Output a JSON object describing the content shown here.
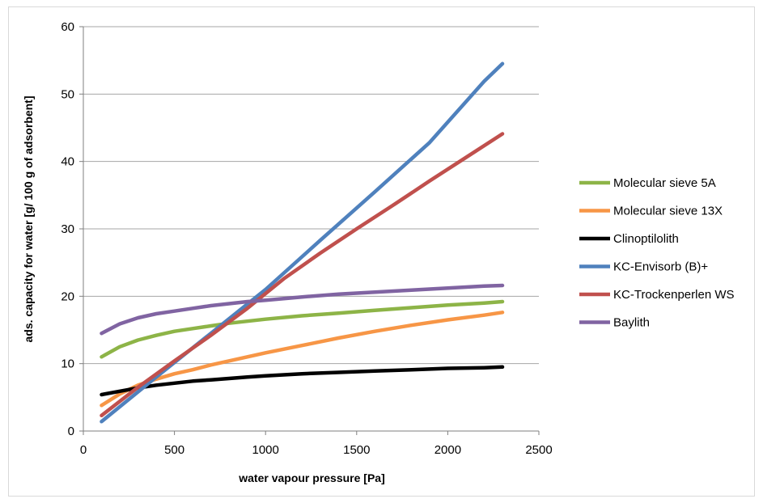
{
  "chart_data": {
    "type": "line",
    "title": "",
    "xlabel": "water vapour pressure [Pa]",
    "ylabel": "ads. capacity for water  [g/ 100 g of adsorbent]",
    "xlim": [
      0,
      2500
    ],
    "ylim": [
      0,
      60
    ],
    "xticks": [
      0,
      500,
      1000,
      1500,
      2000,
      2500
    ],
    "yticks": [
      0,
      10,
      20,
      30,
      40,
      50,
      60
    ],
    "grid": "horizontal",
    "legend_position": "right",
    "series": [
      {
        "name": "Molecular sieve 5A",
        "color": "#8db447",
        "x": [
          100,
          200,
          300,
          400,
          500,
          600,
          700,
          800,
          900,
          1000,
          1200,
          1400,
          1600,
          1800,
          2000,
          2200,
          2300
        ],
        "y": [
          11.0,
          12.5,
          13.5,
          14.2,
          14.8,
          15.2,
          15.6,
          16.0,
          16.3,
          16.6,
          17.1,
          17.5,
          17.9,
          18.3,
          18.7,
          19.0,
          19.2
        ]
      },
      {
        "name": "Molecular sieve 13X",
        "color": "#f79646",
        "x": [
          100,
          200,
          300,
          400,
          500,
          600,
          700,
          800,
          900,
          1000,
          1200,
          1400,
          1600,
          1800,
          2000,
          2200,
          2300
        ],
        "y": [
          3.8,
          5.5,
          6.8,
          7.7,
          8.5,
          9.1,
          9.8,
          10.4,
          11.0,
          11.6,
          12.7,
          13.8,
          14.8,
          15.7,
          16.5,
          17.2,
          17.6
        ]
      },
      {
        "name": "Clinoptilolith",
        "color": "#000000",
        "x": [
          100,
          200,
          300,
          400,
          500,
          600,
          700,
          800,
          900,
          1000,
          1200,
          1400,
          1600,
          1800,
          2000,
          2200,
          2300
        ],
        "y": [
          5.4,
          5.9,
          6.4,
          6.8,
          7.1,
          7.4,
          7.6,
          7.8,
          8.0,
          8.2,
          8.5,
          8.7,
          8.9,
          9.1,
          9.3,
          9.4,
          9.5
        ]
      },
      {
        "name": "KC-Envisorb (B)+",
        "color": "#4f81bd",
        "x": [
          100,
          400,
          700,
          1000,
          1300,
          1600,
          1900,
          2200,
          2300
        ],
        "y": [
          1.4,
          8.0,
          14.5,
          21.0,
          28.3,
          35.5,
          42.8,
          51.9,
          54.5
        ]
      },
      {
        "name": "KC-Trockenperlen WS",
        "color": "#c0504d",
        "x": [
          100,
          300,
          500,
          700,
          900,
          1100,
          1300,
          1500,
          1700,
          1900,
          2100,
          2300
        ],
        "y": [
          2.3,
          6.5,
          10.4,
          14.2,
          18.2,
          22.6,
          26.4,
          30.0,
          33.5,
          37.1,
          40.6,
          44.1
        ]
      },
      {
        "name": "Baylith",
        "color": "#8064a2",
        "x": [
          100,
          200,
          300,
          400,
          500,
          600,
          700,
          800,
          900,
          1000,
          1200,
          1400,
          1600,
          1800,
          2000,
          2200,
          2300
        ],
        "y": [
          14.5,
          15.9,
          16.8,
          17.4,
          17.8,
          18.2,
          18.6,
          18.9,
          19.2,
          19.4,
          19.9,
          20.3,
          20.6,
          20.9,
          21.2,
          21.5,
          21.6
        ]
      }
    ]
  }
}
